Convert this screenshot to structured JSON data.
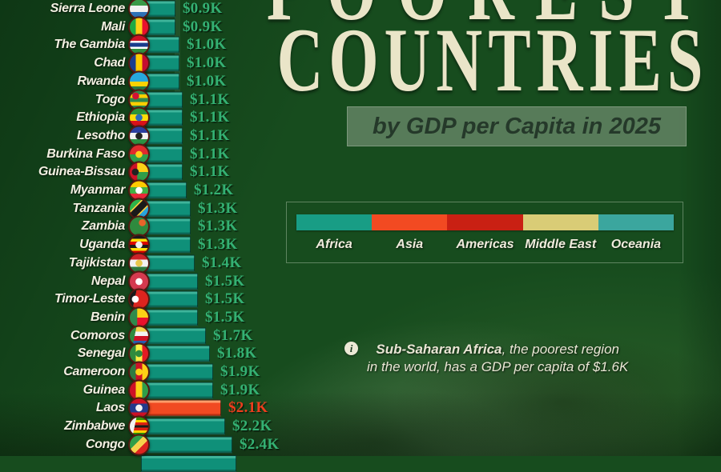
{
  "title": {
    "line1": "POOREST",
    "line2": "COUNTRIES",
    "subtitle": "by GDP per Capita in 2025"
  },
  "legend": {
    "items": [
      {
        "label": "Africa",
        "color": "#189d85"
      },
      {
        "label": "Asia",
        "color": "#f24a22"
      },
      {
        "label": "Americas",
        "color": "#c92013"
      },
      {
        "label": "Middle East",
        "color": "#d9cc76"
      },
      {
        "label": "Oceania",
        "color": "#3ba69e"
      }
    ]
  },
  "note": {
    "icon": "info-icon",
    "bold": "Sub-Saharan Africa",
    "rest1": ", the poorest region",
    "line2": "in the world, has a GDP per capita of $1.6K"
  },
  "chart_data": {
    "type": "bar",
    "orientation": "horizontal",
    "title": "Poorest Countries by GDP per Capita in 2025",
    "unit": "USD thousands, GDP per capita",
    "bar_styles": {
      "teal": {
        "base": "#0f9079",
        "light": "#3eb49a",
        "dark": "#0a6b59",
        "value_color": "#34b173"
      },
      "red": {
        "base": "#f14a22",
        "light": "#ff9c6a",
        "dark": "#b82f12",
        "value_color": "#ef3d1d"
      }
    },
    "rows": [
      {
        "country": "Sierra Leone",
        "value_label": "$0.9K",
        "value_k": 0.9,
        "region": "Africa",
        "style": "teal",
        "flag": {
          "t": "h",
          "c": [
            "#3a9948",
            "#f2f2f2",
            "#2e72b8"
          ]
        }
      },
      {
        "country": "Mali",
        "value_label": "$0.9K",
        "value_k": 0.9,
        "region": "Africa",
        "style": "teal",
        "flag": {
          "t": "v",
          "c": [
            "#1daa44",
            "#fcd116",
            "#e8112d"
          ]
        }
      },
      {
        "country": "The Gambia",
        "value_label": "$1.0K",
        "value_k": 1.0,
        "region": "Africa",
        "style": "teal",
        "flag": {
          "t": "h",
          "c": [
            "#ce1126",
            "#ffffff",
            "#1a3c8c",
            "#ffffff",
            "#2f8f3e"
          ],
          "w": [
            3,
            1,
            2.5,
            1,
            3
          ]
        }
      },
      {
        "country": "Chad",
        "value_label": "$1.0K",
        "value_k": 1.0,
        "region": "Africa",
        "style": "teal",
        "flag": {
          "t": "v",
          "c": [
            "#1b3d8f",
            "#fecb00",
            "#c60c30"
          ]
        }
      },
      {
        "country": "Rwanda",
        "value_label": "$1.0K",
        "value_k": 1.0,
        "region": "Africa",
        "style": "teal",
        "flag": {
          "t": "h",
          "c": [
            "#27a8dd",
            "#fad201",
            "#2c7a43"
          ],
          "w": [
            2,
            1,
            1
          ]
        }
      },
      {
        "country": "Togo",
        "value_label": "$1.1K",
        "value_k": 1.1,
        "region": "Africa",
        "style": "teal",
        "flag": {
          "t": "h",
          "c": [
            "#2f8a4c",
            "#ffce00",
            "#2f8a4c",
            "#ffce00",
            "#2f8a4c"
          ],
          "em": {
            "c": "#d21034",
            "p": "tl"
          }
        }
      },
      {
        "country": "Ethiopia",
        "value_label": "$1.1K",
        "value_k": 1.1,
        "region": "Africa",
        "style": "teal",
        "flag": {
          "t": "h",
          "c": [
            "#2a9339",
            "#fcdd09",
            "#da121a"
          ],
          "em": {
            "c": "#2a6db8",
            "p": "c"
          }
        }
      },
      {
        "country": "Lesotho",
        "value_label": "$1.1K",
        "value_k": 1.1,
        "region": "Africa",
        "style": "teal",
        "flag": {
          "t": "h",
          "c": [
            "#2a3f9f",
            "#f2f2f2",
            "#2a9343"
          ],
          "em": {
            "c": "#222222",
            "p": "c"
          }
        }
      },
      {
        "country": "Burkina Faso",
        "value_label": "$1.1K",
        "value_k": 1.1,
        "region": "Africa",
        "style": "teal",
        "flag": {
          "t": "h",
          "c": [
            "#e02b2d",
            "#2f9e49"
          ],
          "em": {
            "c": "#fcd116",
            "p": "c"
          }
        }
      },
      {
        "country": "Guinea-Bissau",
        "value_label": "$1.1K",
        "value_k": 1.1,
        "region": "Africa",
        "style": "teal",
        "flag": {
          "t": "hv",
          "c": [
            "#ce1126",
            "#fcd116",
            "#2f9e49"
          ],
          "em": {
            "c": "#222222",
            "p": "l"
          }
        }
      },
      {
        "country": "Myanmar",
        "value_label": "$1.2K",
        "value_k": 1.2,
        "region": "Asia",
        "style": "teal",
        "flag": {
          "t": "h",
          "c": [
            "#fecb00",
            "#43b244",
            "#ea2839"
          ],
          "em": {
            "c": "#ffffff",
            "p": "c"
          }
        }
      },
      {
        "country": "Tanzania",
        "value_label": "$1.3K",
        "value_k": 1.3,
        "region": "Africa",
        "style": "teal",
        "flag": {
          "t": "d",
          "c": [
            "#2bb54a",
            "#f0c93f",
            "#1a1a1a",
            "#f0c93f",
            "#28a3dd"
          ],
          "w": [
            3.2,
            0.6,
            2.4,
            0.6,
            3.2
          ]
        }
      },
      {
        "country": "Zambia",
        "value_label": "$1.3K",
        "value_k": 1.3,
        "region": "Africa",
        "style": "teal",
        "flag": {
          "t": "s",
          "c": [
            "#2f8a3e"
          ],
          "em": {
            "c": "#e8632a",
            "p": "tr"
          }
        }
      },
      {
        "country": "Uganda",
        "value_label": "$1.3K",
        "value_k": 1.3,
        "region": "Africa",
        "style": "teal",
        "flag": {
          "t": "h",
          "c": [
            "#1a1a1a",
            "#fcdc04",
            "#d90000",
            "#1a1a1a",
            "#fcdc04",
            "#d90000"
          ],
          "em": {
            "c": "#eeeeee",
            "p": "c"
          }
        }
      },
      {
        "country": "Tajikistan",
        "value_label": "$1.4K",
        "value_k": 1.4,
        "region": "Asia",
        "style": "teal",
        "flag": {
          "t": "h",
          "c": [
            "#cc2228",
            "#f2f2f2",
            "#2f7a3e"
          ],
          "w": [
            1,
            1.3,
            1
          ],
          "em": {
            "c": "#e8c84c",
            "p": "c"
          }
        }
      },
      {
        "country": "Nepal",
        "value_label": "$1.5K",
        "value_k": 1.5,
        "region": "Asia",
        "style": "teal",
        "flag": {
          "t": "s",
          "c": [
            "#d43a4f"
          ],
          "em": {
            "c": "#ffffff",
            "p": "c"
          }
        }
      },
      {
        "country": "Timor-Leste",
        "value_label": "$1.5K",
        "value_k": 1.5,
        "region": "Asia",
        "style": "teal",
        "flag": {
          "t": "s",
          "c": [
            "#dc241f"
          ],
          "tri": "#1a1a1a",
          "em": {
            "c": "#ffffff",
            "p": "l"
          }
        }
      },
      {
        "country": "Benin",
        "value_label": "$1.5K",
        "value_k": 1.5,
        "region": "Africa",
        "style": "teal",
        "flag": {
          "t": "hv",
          "c": [
            "#2f8a4c",
            "#fcd116",
            "#e8112d"
          ]
        }
      },
      {
        "country": "Comoros",
        "value_label": "$1.7K",
        "value_k": 1.7,
        "region": "Africa",
        "style": "teal",
        "flag": {
          "t": "h",
          "c": [
            "#f5d34c",
            "#f2f2f2",
            "#ce1126",
            "#2a5fb4"
          ],
          "tri": "#2f8a3e"
        }
      },
      {
        "country": "Senegal",
        "value_label": "$1.8K",
        "value_k": 1.8,
        "region": "Africa",
        "style": "teal",
        "flag": {
          "t": "v",
          "c": [
            "#2f8a3e",
            "#fdef42",
            "#e31b23"
          ],
          "em": {
            "c": "#2f8a3e",
            "p": "c"
          }
        }
      },
      {
        "country": "Cameroon",
        "value_label": "$1.9K",
        "value_k": 1.9,
        "region": "Africa",
        "style": "teal",
        "flag": {
          "t": "v",
          "c": [
            "#2f7a42",
            "#ce1126",
            "#fcd116"
          ],
          "em": {
            "c": "#fcd116",
            "p": "c"
          }
        }
      },
      {
        "country": "Guinea",
        "value_label": "$1.9K",
        "value_k": 1.9,
        "region": "Africa",
        "style": "teal",
        "flag": {
          "t": "v",
          "c": [
            "#ce1126",
            "#fcd116",
            "#2f9e49"
          ]
        }
      },
      {
        "country": "Laos",
        "value_label": "$2.1K",
        "value_k": 2.1,
        "region": "Asia",
        "style": "red",
        "flag": {
          "t": "h",
          "c": [
            "#ce1126",
            "#223a8c",
            "#ce1126"
          ],
          "w": [
            1,
            2,
            1
          ],
          "em": {
            "c": "#f2f2f2",
            "p": "c"
          }
        }
      },
      {
        "country": "Zimbabwe",
        "value_label": "$2.2K",
        "value_k": 2.2,
        "region": "Africa",
        "style": "teal",
        "flag": {
          "t": "h",
          "c": [
            "#319208",
            "#ffd200",
            "#de2010",
            "#1a1a1a",
            "#de2010",
            "#ffd200",
            "#319208"
          ],
          "tri": "#f2f2f2"
        }
      },
      {
        "country": "Congo",
        "value_label": "$2.4K",
        "value_k": 2.4,
        "region": "Africa",
        "style": "teal",
        "flag": {
          "t": "d",
          "c": [
            "#2f9e49",
            "#f5d34c",
            "#dc241f"
          ],
          "w": [
            2.5,
            1.5,
            2.5
          ]
        }
      }
    ],
    "partial_bottom_bar": {
      "visible": true,
      "value_k_estimate": 2.5,
      "style": "teal"
    }
  }
}
